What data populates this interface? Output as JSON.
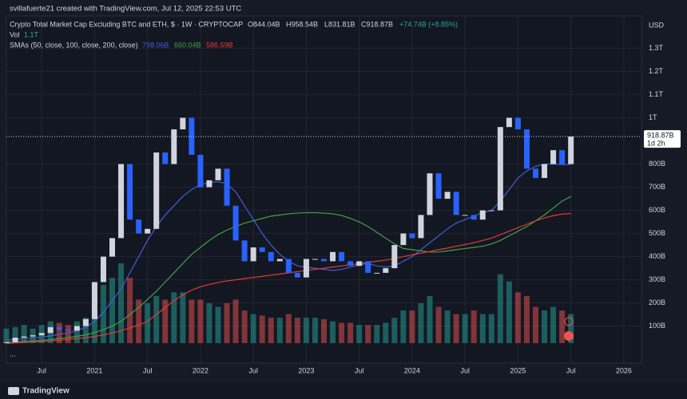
{
  "header": {
    "credit": "svillafuerte21 created with TradingView.com, Jul 12, 2025 22:53 UTC",
    "symbol": "Crypto Total Market Cap Excluding BTC and ETH, $ · 1W · CRYPTOCAP",
    "open": "O844.04B",
    "high": "H958.54B",
    "low": "L831.81B",
    "close": "C918.87B",
    "change": "+74.74B (+8.85%)",
    "vol_name": "Vol",
    "vol_value": "1.1T",
    "sma_name": "SMAs (50, close, 100, close, 200, close)",
    "currency": "USD",
    "countdown": "1d 2h",
    "more": "...",
    "brand": "TradingView"
  },
  "chart_data": {
    "type": "candlestick",
    "x": [
      "2020-03",
      "2020-04",
      "2020-05",
      "2020-06",
      "2020-07",
      "2020-08",
      "2020-09",
      "2020-10",
      "2020-11",
      "2020-12",
      "2021-01",
      "2021-02",
      "2021-03",
      "2021-04",
      "2021-05",
      "2021-06",
      "2021-07",
      "2021-08",
      "2021-09",
      "2021-10",
      "2021-11",
      "2021-12",
      "2022-01",
      "2022-02",
      "2022-03",
      "2022-04",
      "2022-05",
      "2022-06",
      "2022-07",
      "2022-08",
      "2022-09",
      "2022-10",
      "2022-11",
      "2022-12",
      "2023-01",
      "2023-02",
      "2023-03",
      "2023-04",
      "2023-05",
      "2023-06",
      "2023-07",
      "2023-08",
      "2023-09",
      "2023-10",
      "2023-11",
      "2023-12",
      "2024-01",
      "2024-02",
      "2024-03",
      "2024-04",
      "2024-05",
      "2024-06",
      "2024-07",
      "2024-08",
      "2024-09",
      "2024-10",
      "2024-11",
      "2024-12",
      "2025-01",
      "2025-02",
      "2025-03",
      "2025-04",
      "2025-05",
      "2025-06",
      "2025-07"
    ],
    "close": [
      30,
      50,
      55,
      60,
      70,
      95,
      85,
      80,
      100,
      130,
      290,
      400,
      480,
      800,
      560,
      500,
      520,
      850,
      800,
      950,
      1000,
      840,
      700,
      730,
      780,
      620,
      470,
      380,
      440,
      420,
      380,
      390,
      330,
      310,
      390,
      390,
      380,
      420,
      380,
      360,
      380,
      330,
      330,
      350,
      450,
      500,
      480,
      580,
      760,
      650,
      680,
      580,
      580,
      560,
      600,
      600,
      960,
      1000,
      950,
      780,
      740,
      800,
      860,
      800,
      918.87
    ],
    "volume": [
      20,
      22,
      25,
      20,
      25,
      30,
      28,
      25,
      30,
      35,
      60,
      80,
      90,
      110,
      90,
      60,
      55,
      65,
      60,
      70,
      70,
      60,
      60,
      55,
      50,
      55,
      60,
      45,
      40,
      38,
      35,
      35,
      40,
      35,
      35,
      35,
      33,
      30,
      28,
      28,
      25,
      25,
      25,
      28,
      35,
      45,
      45,
      55,
      65,
      50,
      45,
      40,
      40,
      45,
      40,
      40,
      95,
      85,
      70,
      65,
      50,
      45,
      50,
      45,
      40
    ],
    "up_color": "#d1d4dc",
    "down_color": "#2962ff",
    "vol_up_color": "#26a69a",
    "vol_down_color": "#ef5350",
    "series": [
      {
        "color": "#3f5fd6",
        "label": "798.06B",
        "values": [
          40,
          42,
          45,
          48,
          52,
          58,
          64,
          70,
          80,
          95,
          120,
          160,
          210,
          260,
          330,
          400,
          470,
          530,
          580,
          620,
          660,
          690,
          710,
          720,
          724,
          715,
          680,
          620,
          560,
          500,
          450,
          410,
          380,
          360,
          355,
          350,
          345,
          340,
          345,
          355,
          365,
          370,
          360,
          355,
          360,
          380,
          400,
          430,
          460,
          490,
          520,
          545,
          560,
          575,
          590,
          600,
          640,
          690,
          740,
          770,
          790,
          800,
          800,
          798,
          798.06
        ]
      },
      {
        "color": "#43a047",
        "label": "660.04B",
        "values": [
          30,
          32,
          34,
          36,
          38,
          42,
          46,
          50,
          56,
          62,
          72,
          85,
          100,
          120,
          150,
          180,
          215,
          250,
          290,
          330,
          370,
          410,
          440,
          470,
          495,
          515,
          530,
          545,
          555,
          565,
          575,
          580,
          585,
          588,
          590,
          590,
          588,
          585,
          578,
          565,
          550,
          530,
          505,
          480,
          455,
          435,
          430,
          425,
          420,
          420,
          425,
          430,
          435,
          440,
          445,
          455,
          470,
          490,
          510,
          530,
          555,
          580,
          610,
          640,
          660.04
        ]
      },
      {
        "color": "#e53935",
        "label": "586.59B",
        "values": [
          25,
          27,
          29,
          31,
          33,
          36,
          39,
          42,
          46,
          50,
          55,
          62,
          70,
          80,
          92,
          105,
          120,
          150,
          180,
          210,
          235,
          255,
          270,
          280,
          288,
          295,
          300,
          305,
          310,
          315,
          320,
          325,
          330,
          335,
          340,
          345,
          350,
          355,
          360,
          365,
          370,
          375,
          380,
          385,
          392,
          400,
          408,
          415,
          422,
          430,
          437,
          445,
          452,
          460,
          470,
          480,
          495,
          510,
          525,
          540,
          555,
          567,
          577,
          584,
          586.59
        ]
      }
    ],
    "last_price": {
      "value": 918.87,
      "label": "918.87B"
    },
    "xlim": [
      "2020-03",
      "2026-03"
    ],
    "xticks": [
      {
        "value": "2020-07",
        "label": "Jul"
      },
      {
        "value": "2021-01",
        "label": "2021"
      },
      {
        "value": "2021-07",
        "label": "Jul"
      },
      {
        "value": "2022-01",
        "label": "2022"
      },
      {
        "value": "2022-07",
        "label": "Jul"
      },
      {
        "value": "2023-01",
        "label": "2023"
      },
      {
        "value": "2023-07",
        "label": "Jul"
      },
      {
        "value": "2024-01",
        "label": "2024"
      },
      {
        "value": "2024-07",
        "label": "Jul"
      },
      {
        "value": "2025-01",
        "label": "2025"
      },
      {
        "value": "2025-07",
        "label": "Jul"
      },
      {
        "value": "2026-01",
        "label": "2026"
      }
    ],
    "ylim": [
      -60,
      1440
    ],
    "yticks": [
      {
        "value": 100,
        "label": "100B"
      },
      {
        "value": 200,
        "label": "200B"
      },
      {
        "value": 300,
        "label": "300B"
      },
      {
        "value": 400,
        "label": "400B"
      },
      {
        "value": 500,
        "label": "500B"
      },
      {
        "value": 600,
        "label": "600B"
      },
      {
        "value": 700,
        "label": "700B"
      },
      {
        "value": 800,
        "label": "800B"
      },
      {
        "value": 1000,
        "label": "1T"
      },
      {
        "value": 1100,
        "label": "1.1T"
      },
      {
        "value": 1200,
        "label": "1.2T"
      },
      {
        "value": 1300,
        "label": "1.3T"
      }
    ],
    "grid": true
  }
}
